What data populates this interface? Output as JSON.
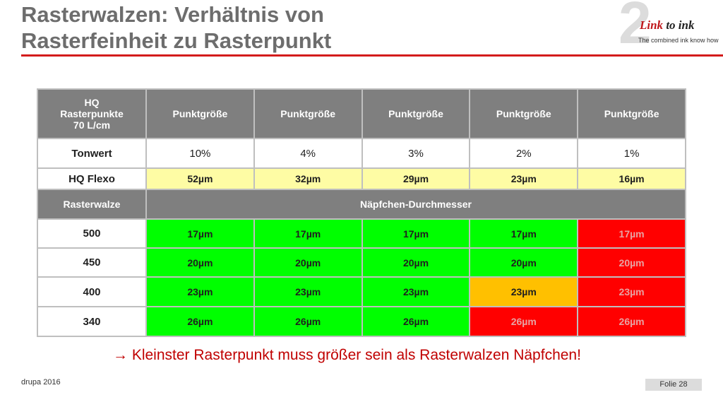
{
  "slide": {
    "title_line1": "Rasterwalzen: Verhältnis von",
    "title_line2": "Rasterfeinheit zu Rasterpunkt",
    "conclusion": "→ Kleinster Rasterpunkt muss größer sein als Rasterwalzen Näpfchen!",
    "footer_left": "drupa 2016",
    "footer_right": "Folie 28"
  },
  "logo": {
    "numeral": "2",
    "brand_link": "Link",
    "brand_to": "to ink",
    "tagline": "The combined ink know how"
  },
  "table": {
    "header": {
      "first_line1": "HQ",
      "first_line2": "Rasterpunkte",
      "first_line3": "70 L/cm",
      "columns": [
        "Punktgröße",
        "Punktgröße",
        "Punktgröße",
        "Punktgröße",
        "Punktgröße"
      ]
    },
    "tonwert": {
      "label": "Tonwert",
      "values": [
        "10%",
        "4%",
        "3%",
        "2%",
        "1%"
      ]
    },
    "hq_flexo": {
      "label": "HQ Flexo",
      "values": [
        "52µm",
        "32µm",
        "29µm",
        "23µm",
        "16µm"
      ]
    },
    "section": {
      "label": "Rasterwalze",
      "span_label": "Näpfchen-Durchmesser"
    },
    "rows": [
      {
        "label": "500",
        "values": [
          "17µm",
          "17µm",
          "17µm",
          "17µm",
          "17µm"
        ],
        "status": [
          "green",
          "green",
          "green",
          "green",
          "red"
        ]
      },
      {
        "label": "450",
        "values": [
          "20µm",
          "20µm",
          "20µm",
          "20µm",
          "20µm"
        ],
        "status": [
          "green",
          "green",
          "green",
          "green",
          "red"
        ]
      },
      {
        "label": "400",
        "values": [
          "23µm",
          "23µm",
          "23µm",
          "23µm",
          "23µm"
        ],
        "status": [
          "green",
          "green",
          "green",
          "orange",
          "red"
        ]
      },
      {
        "label": "340",
        "values": [
          "26µm",
          "26µm",
          "26µm",
          "26µm",
          "26µm"
        ],
        "status": [
          "green",
          "green",
          "green",
          "red",
          "red"
        ]
      }
    ]
  },
  "colors": {
    "header_gray": "#7f7f7f",
    "ok_green": "#00ff00",
    "fail_red": "#ff0000",
    "borderline_orange": "#ffc000",
    "highlight_yellow": "#ffff00",
    "flexo_yellow": "#fefca4",
    "accent_red": "#c00000"
  }
}
